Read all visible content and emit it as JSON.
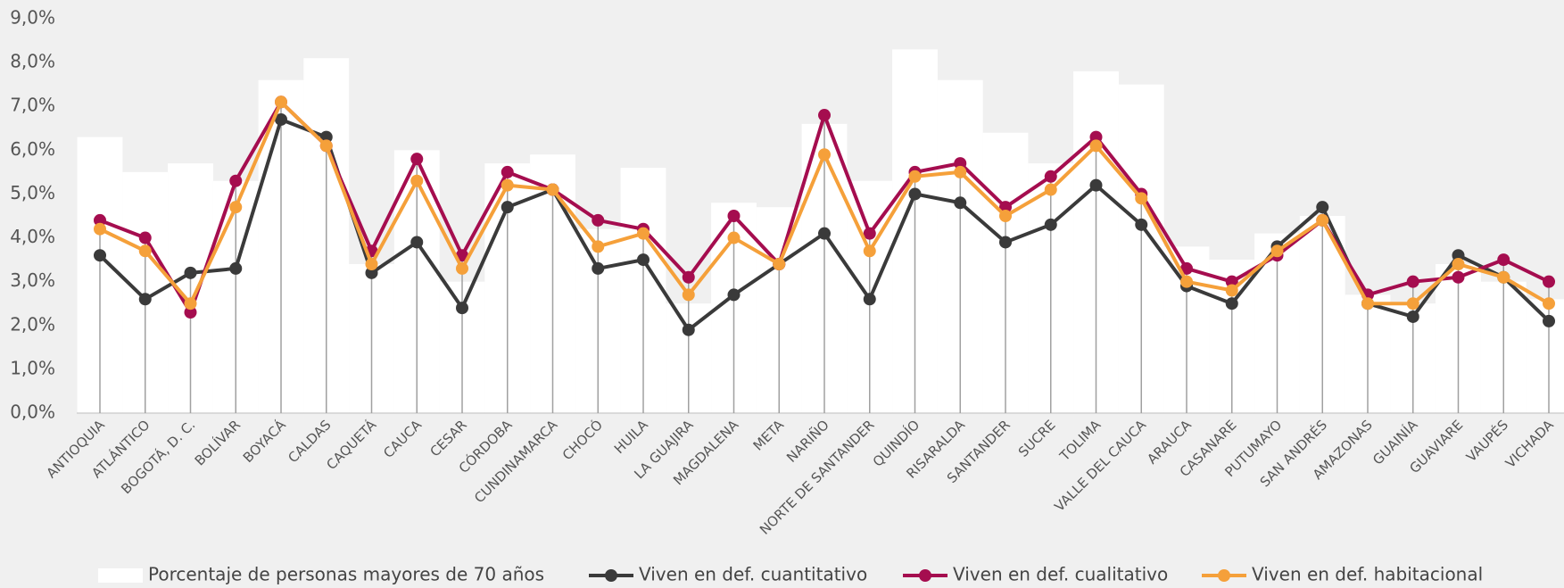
{
  "chart_data": {
    "type": "bar_line",
    "categories": [
      "ANTIOQUIA",
      "ATLÁNTICO",
      "BOGOTÁ, D. C.",
      "BOLÍVAR",
      "BOYACÁ",
      "CALDAS",
      "CAQUETÁ",
      "CAUCA",
      "CESAR",
      "CÓRDOBA",
      "CUNDINAMARCA",
      "CHOCÓ",
      "HUILA",
      "LA GUAJIRA",
      "MAGDALENA",
      "META",
      "NARIÑO",
      "NORTE DE SANTANDER",
      "QUINDÍO",
      "RISARALDA",
      "SANTANDER",
      "SUCRE",
      "TOLIMA",
      "VALLE DEL CAUCA",
      "ARAUCA",
      "CASANARE",
      "PUTUMAYO",
      "SAN ANDRÉS",
      "AMAZONAS",
      "GUAINÍA",
      "GUAVIARE",
      "VAUPÉS",
      "VICHADA"
    ],
    "series": [
      {
        "name": "Porcentaje de personas mayores de 70 años",
        "type": "bar",
        "color": "#ffffff",
        "values": [
          6.3,
          5.5,
          5.7,
          5.3,
          7.6,
          8.1,
          3.4,
          6.0,
          3.0,
          5.7,
          5.9,
          4.2,
          5.6,
          2.5,
          4.8,
          4.7,
          6.6,
          5.3,
          8.3,
          7.6,
          6.4,
          5.7,
          7.8,
          7.5,
          3.8,
          3.5,
          4.1,
          4.5,
          2.7,
          2.5,
          3.4,
          3.0,
          2.6
        ]
      },
      {
        "name": "Viven en def. cuantitativo",
        "type": "line",
        "color": "#3a3a3a",
        "values": [
          3.6,
          2.6,
          3.2,
          3.3,
          6.7,
          6.3,
          3.2,
          3.9,
          2.4,
          4.7,
          5.1,
          3.3,
          3.5,
          1.9,
          2.7,
          3.4,
          4.1,
          2.6,
          5.0,
          4.8,
          3.9,
          4.3,
          5.2,
          4.3,
          2.9,
          2.5,
          3.8,
          4.7,
          2.5,
          2.2,
          3.6,
          3.1,
          2.1
        ]
      },
      {
        "name": "Viven en def. cualitativo",
        "type": "line",
        "color": "#a50d4f",
        "values": [
          4.4,
          4.0,
          2.3,
          5.3,
          7.1,
          6.1,
          3.7,
          5.8,
          3.6,
          5.5,
          5.1,
          4.4,
          4.2,
          3.1,
          4.5,
          3.4,
          6.8,
          4.1,
          5.5,
          5.7,
          4.7,
          5.4,
          6.3,
          5.0,
          3.3,
          3.0,
          3.6,
          4.4,
          2.7,
          3.0,
          3.1,
          3.5,
          3.0
        ]
      },
      {
        "name": "Viven en def. habitacional",
        "type": "line",
        "color": "#f5a03a",
        "values": [
          4.2,
          3.7,
          2.5,
          4.7,
          7.1,
          6.1,
          3.4,
          5.3,
          3.3,
          5.2,
          5.1,
          3.8,
          4.1,
          2.7,
          4.0,
          3.4,
          5.9,
          3.7,
          5.4,
          5.5,
          4.5,
          5.1,
          6.1,
          4.9,
          3.0,
          2.8,
          3.7,
          4.4,
          2.5,
          2.5,
          3.4,
          3.1,
          2.5
        ]
      }
    ],
    "ylim": [
      0,
      9
    ],
    "yticks": [
      {
        "value": 0,
        "label": "0,0%"
      },
      {
        "value": 1,
        "label": "1,0%"
      },
      {
        "value": 2,
        "label": "2,0%"
      },
      {
        "value": 3,
        "label": "3,0%"
      },
      {
        "value": 4,
        "label": "4,0%"
      },
      {
        "value": 5,
        "label": "5,0%"
      },
      {
        "value": 6,
        "label": "6,0%"
      },
      {
        "value": 7,
        "label": "7,0%"
      },
      {
        "value": 8,
        "label": "8,0%"
      },
      {
        "value": 9,
        "label": "9,0%"
      }
    ],
    "legend": "bottom"
  }
}
